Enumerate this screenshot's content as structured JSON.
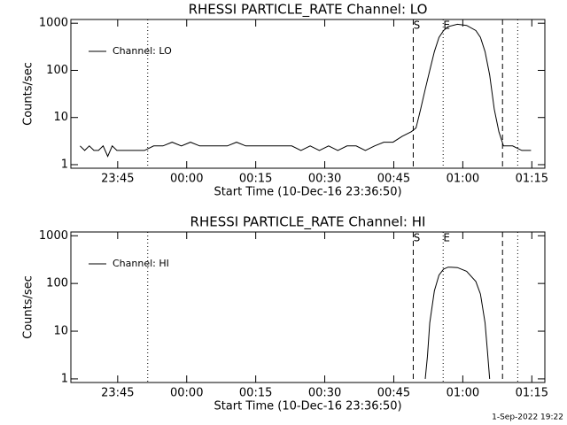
{
  "chart_data": [
    {
      "type": "line",
      "title": "RHESSI PARTICLE_RATE Channel: LO",
      "x_label": "Start Time (10-Dec-16 23:36:50)",
      "y_label": "Counts/sec",
      "log_y": true,
      "legend": "upper left",
      "xlim": [
        -2,
        101
      ],
      "ylim": [
        0.84,
        1200
      ],
      "xticks": [
        {
          "value": 8.17,
          "label": "23:45"
        },
        {
          "value": 23.17,
          "label": "00:00"
        },
        {
          "value": 38.17,
          "label": "00:15"
        },
        {
          "value": 53.17,
          "label": "00:30"
        },
        {
          "value": 68.17,
          "label": "00:45"
        },
        {
          "value": 83.17,
          "label": "01:00"
        },
        {
          "value": 98.17,
          "label": "01:15"
        }
      ],
      "yticks": [
        1,
        10,
        100,
        1000
      ],
      "markers": [
        {
          "x": 14.7,
          "style": "dotted"
        },
        {
          "x": 72.4,
          "style": "dashed",
          "label": "S"
        },
        {
          "x": 78.9,
          "style": "dotted",
          "label": "E"
        },
        {
          "x": 91.8,
          "style": "dashed"
        },
        {
          "x": 95.1,
          "style": "dotted"
        }
      ],
      "series": [
        {
          "name": "Channel: LO",
          "color": "#000000",
          "x": [
            0,
            1,
            2,
            3,
            4,
            5,
            6,
            7,
            8,
            10,
            12,
            14,
            16,
            18,
            20,
            22,
            24,
            26,
            28,
            30,
            32,
            34,
            36,
            38,
            40,
            42,
            44,
            46,
            48,
            50,
            52,
            54,
            56,
            58,
            60,
            62,
            64,
            66,
            68,
            70,
            72,
            73,
            74,
            75,
            76,
            77,
            78,
            79,
            80,
            82,
            84,
            86,
            87,
            88,
            89,
            90,
            91,
            92,
            93,
            94,
            96,
            98
          ],
          "values": [
            2.5,
            2,
            2.5,
            2,
            2,
            2.5,
            1.5,
            2.5,
            2,
            2,
            2,
            2,
            2.5,
            2.5,
            3,
            2.5,
            3,
            2.5,
            2.5,
            2.5,
            2.5,
            3,
            2.5,
            2.5,
            2.5,
            2.5,
            2.5,
            2.5,
            2,
            2.5,
            2,
            2.5,
            2,
            2.5,
            2.5,
            2,
            2.5,
            3,
            3,
            4,
            5,
            6,
            15,
            40,
            100,
            250,
            500,
            700,
            850,
            950,
            900,
            700,
            500,
            250,
            80,
            15,
            5,
            2.5,
            2.5,
            2.5,
            2,
            2
          ]
        }
      ]
    },
    {
      "type": "line",
      "title": "RHESSI PARTICLE_RATE Channel: HI",
      "x_label": "Start Time (10-Dec-16 23:36:50)",
      "y_label": "Counts/sec",
      "log_y": true,
      "legend": "upper left",
      "xlim": [
        -2,
        101
      ],
      "ylim": [
        0.84,
        1200
      ],
      "xticks": [
        {
          "value": 8.17,
          "label": "23:45"
        },
        {
          "value": 23.17,
          "label": "00:00"
        },
        {
          "value": 38.17,
          "label": "00:15"
        },
        {
          "value": 53.17,
          "label": "00:30"
        },
        {
          "value": 68.17,
          "label": "00:45"
        },
        {
          "value": 83.17,
          "label": "01:00"
        },
        {
          "value": 98.17,
          "label": "01:15"
        }
      ],
      "yticks": [
        1,
        10,
        100,
        1000
      ],
      "markers": [
        {
          "x": 14.7,
          "style": "dotted"
        },
        {
          "x": 72.4,
          "style": "dashed",
          "label": "S"
        },
        {
          "x": 78.9,
          "style": "dotted",
          "label": "E"
        },
        {
          "x": 91.8,
          "style": "dashed"
        },
        {
          "x": 95.1,
          "style": "dotted"
        }
      ],
      "series": [
        {
          "name": "Channel: HI",
          "color": "#000000",
          "x": [
            75,
            75.5,
            76,
            77,
            78,
            79,
            80,
            82,
            84,
            86,
            87,
            88,
            88.5,
            89
          ],
          "values": [
            1,
            3,
            15,
            70,
            150,
            200,
            220,
            215,
            180,
            110,
            60,
            15,
            4,
            1
          ]
        }
      ]
    }
  ],
  "footer": "1-Sep-2022 19:22"
}
